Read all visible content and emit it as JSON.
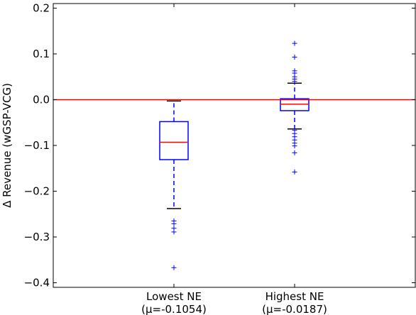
{
  "chart_data": {
    "type": "box",
    "title": "",
    "xlabel": "",
    "ylabel": "Δ Revenue (wGSP-VCG)",
    "ylim": [
      -0.41,
      0.21
    ],
    "yticks": [
      -0.4,
      -0.3,
      -0.2,
      -0.1,
      0.0,
      0.1,
      0.2
    ],
    "ytick_labels": [
      "−0.4",
      "−0.3",
      "−0.2",
      "−0.1",
      "0.0",
      "0.1",
      "0.2"
    ],
    "grid": false,
    "reference_line": {
      "y": 0.0,
      "color": "#ff0000"
    },
    "colors": {
      "box": "#0000ff",
      "median": "#ff0000",
      "whisker_cap": "#000000",
      "flier": "#0000ff"
    },
    "groups": [
      {
        "label": "Lowest NE",
        "sublabel": "(μ=-0.1054)",
        "whisker_low": -0.238,
        "q1": -0.131,
        "median": -0.093,
        "q3": -0.048,
        "whisker_high": -0.003,
        "fliers": [
          -0.265,
          -0.271,
          -0.281,
          -0.289,
          -0.367
        ]
      },
      {
        "label": "Highest NE",
        "sublabel": "(μ=-0.0187)",
        "whisker_low": -0.064,
        "q1": -0.024,
        "median": -0.01,
        "q3": 0.002,
        "whisker_high": 0.036,
        "fliers": [
          -0.067,
          -0.074,
          -0.081,
          -0.088,
          -0.095,
          -0.101,
          -0.116,
          -0.158,
          0.04,
          0.045,
          0.05,
          0.058,
          0.063,
          0.093,
          0.123
        ]
      }
    ]
  }
}
